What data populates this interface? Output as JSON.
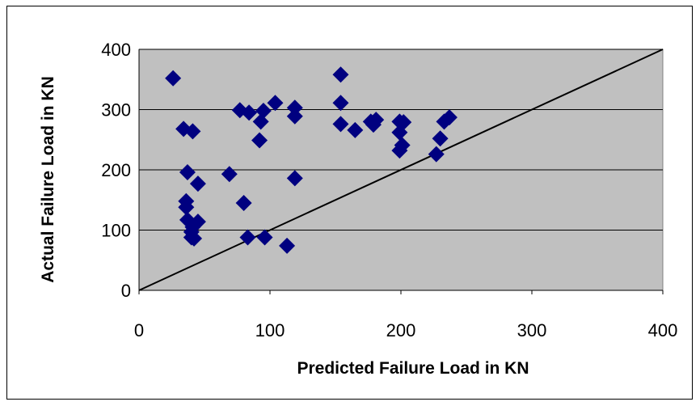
{
  "chart_data": {
    "type": "scatter",
    "title": "",
    "xlabel": "Predicted Failure Load in KN",
    "ylabel": "Actual Failure Load in KN",
    "xlim": [
      0,
      400
    ],
    "ylim": [
      0,
      400
    ],
    "x_ticks": [
      "0",
      "100",
      "200",
      "300",
      "400"
    ],
    "y_ticks": [
      "0",
      "100",
      "200",
      "300",
      "400"
    ],
    "grid": "horizontal",
    "legend": "none",
    "reference_line": {
      "from": [
        0,
        0
      ],
      "to": [
        400,
        400
      ]
    },
    "marker": "diamond",
    "colors": {
      "plot_area": "#c0c0c0",
      "marker": "#000080",
      "line": "#000000"
    },
    "series": [
      {
        "points": [
          [
            26,
            352
          ],
          [
            34,
            268
          ],
          [
            37,
            196
          ],
          [
            36,
            148
          ],
          [
            36,
            138
          ],
          [
            37,
            117
          ],
          [
            41,
            105
          ],
          [
            40,
            97
          ],
          [
            40,
            88
          ],
          [
            42,
            86
          ],
          [
            41,
            264
          ],
          [
            45,
            114
          ],
          [
            45,
            177
          ],
          [
            69,
            193
          ],
          [
            77,
            299
          ],
          [
            80,
            145
          ],
          [
            84,
            295
          ],
          [
            83,
            88
          ],
          [
            92,
            249
          ],
          [
            93,
            280
          ],
          [
            95,
            298
          ],
          [
            96,
            88
          ],
          [
            104,
            311
          ],
          [
            113,
            74
          ],
          [
            119,
            303
          ],
          [
            119,
            289
          ],
          [
            119,
            186
          ],
          [
            154,
            358
          ],
          [
            154,
            311
          ],
          [
            154,
            276
          ],
          [
            165,
            266
          ],
          [
            177,
            280
          ],
          [
            179,
            275
          ],
          [
            181,
            283
          ],
          [
            199,
            280
          ],
          [
            199,
            262
          ],
          [
            199,
            232
          ],
          [
            201,
            241
          ],
          [
            202,
            279
          ],
          [
            227,
            226
          ],
          [
            230,
            252
          ],
          [
            233,
            280
          ],
          [
            237,
            287
          ]
        ]
      }
    ]
  }
}
